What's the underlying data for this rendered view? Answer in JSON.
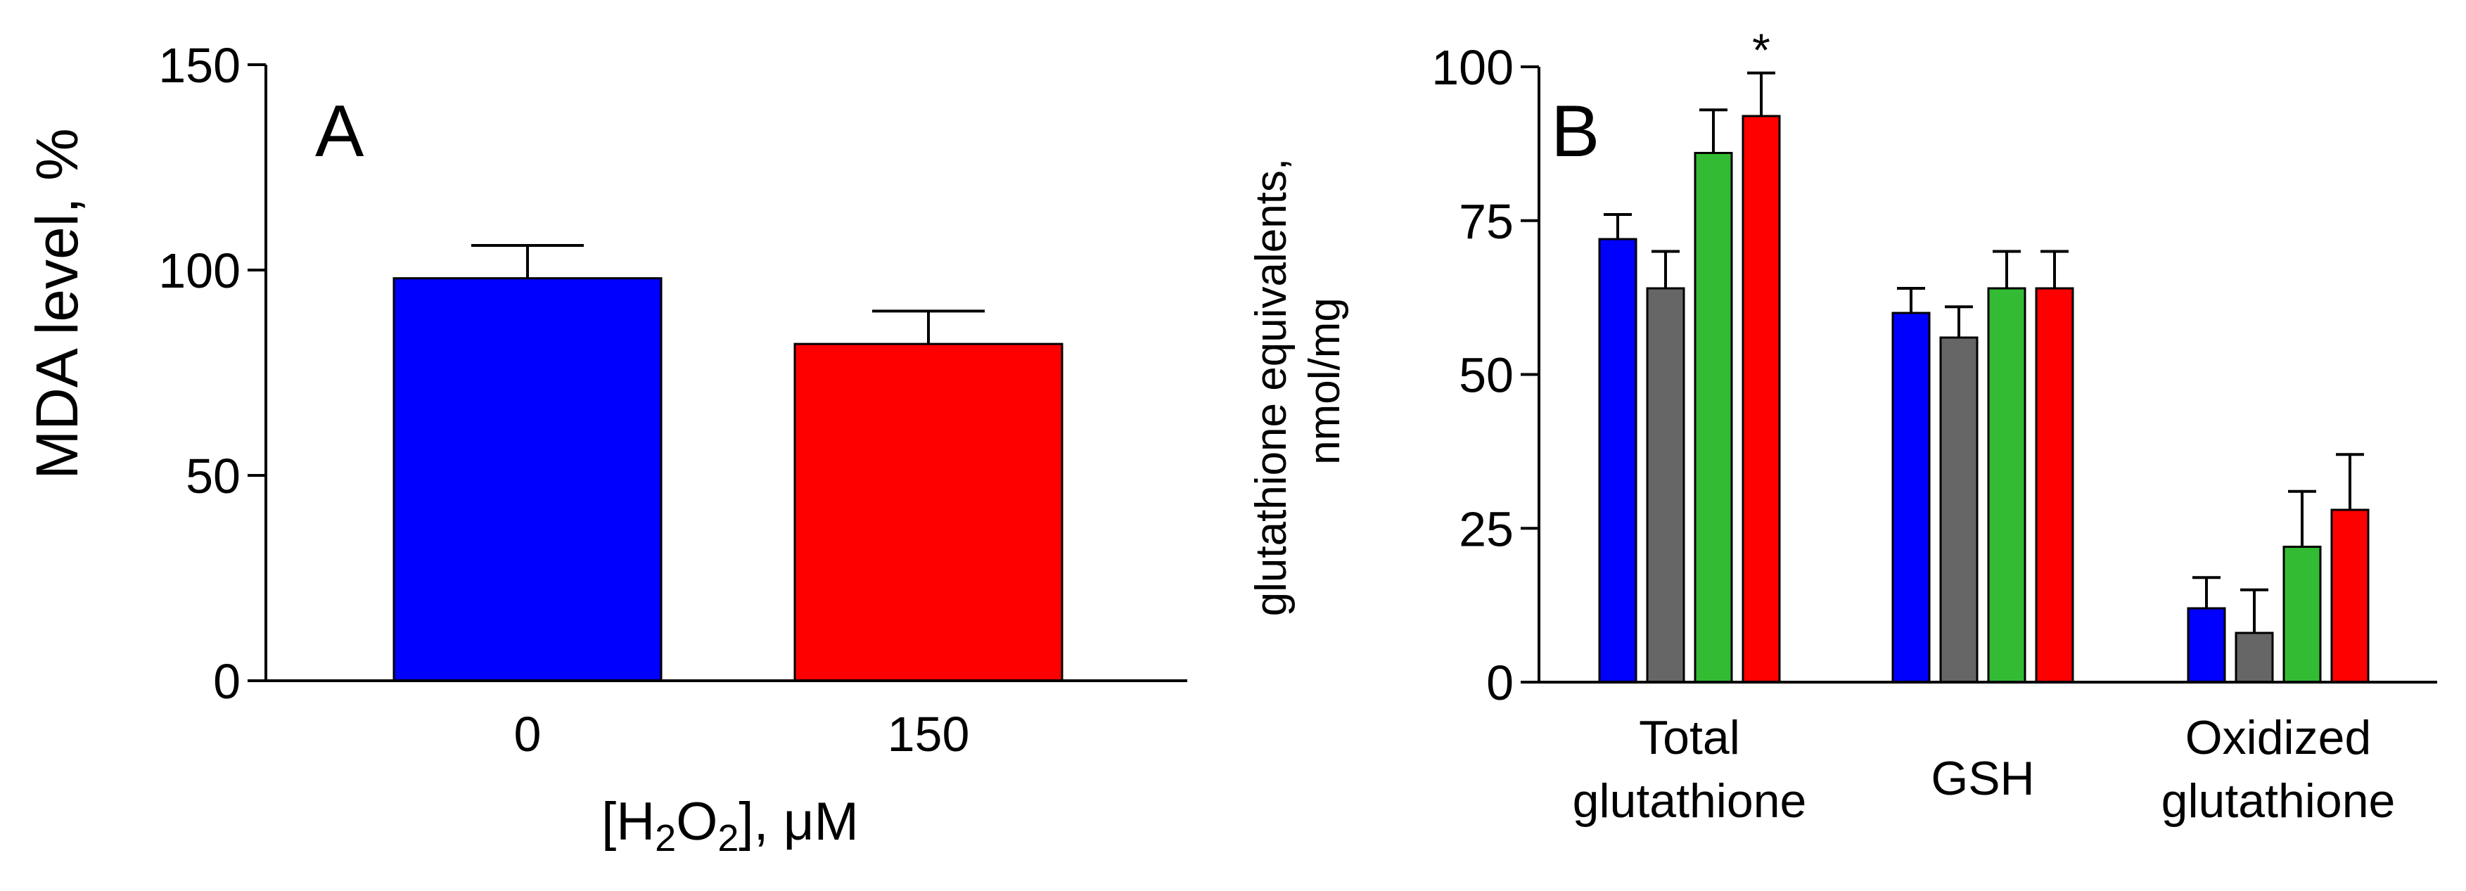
{
  "chart_data": [
    {
      "type": "bar",
      "panel_label": "A",
      "ylabel": "MDA level, %",
      "xlabel": {
        "before": "[H",
        "sub1": "2",
        "mid": "O",
        "sub2": "2",
        "after": "], μM"
      },
      "ylim": [
        0,
        150
      ],
      "yticks": [
        "0",
        "50",
        "100",
        "150"
      ],
      "categories": [
        "0",
        "150"
      ],
      "values": [
        98,
        82
      ],
      "errors": [
        8,
        8
      ],
      "colors": [
        "#0000ff",
        "#ff0000"
      ]
    },
    {
      "type": "bar",
      "panel_label": "B",
      "ylabel": [
        "glutathione equivalents,",
        "nmol/mg"
      ],
      "ylim": [
        0,
        100
      ],
      "yticks": [
        "0",
        "25",
        "50",
        "75",
        "100"
      ],
      "groups": [
        {
          "label": [
            "Total",
            "glutathione"
          ],
          "values": [
            72,
            64,
            86,
            92
          ],
          "errors": [
            4,
            6,
            7,
            7
          ],
          "significant": [
            false,
            false,
            false,
            true
          ]
        },
        {
          "label": [
            "GSH"
          ],
          "values": [
            60,
            56,
            64,
            64
          ],
          "errors": [
            4,
            5,
            6,
            6
          ],
          "significant": [
            false,
            false,
            false,
            false
          ]
        },
        {
          "label": [
            "Oxidized",
            "glutathione"
          ],
          "values": [
            12,
            8,
            22,
            28
          ],
          "errors": [
            5,
            7,
            9,
            9
          ],
          "significant": [
            false,
            false,
            false,
            false
          ]
        }
      ],
      "series_colors": [
        "#0000ff",
        "#666666",
        "#33bb33",
        "#ff0000"
      ],
      "significance_marker": "*"
    }
  ]
}
